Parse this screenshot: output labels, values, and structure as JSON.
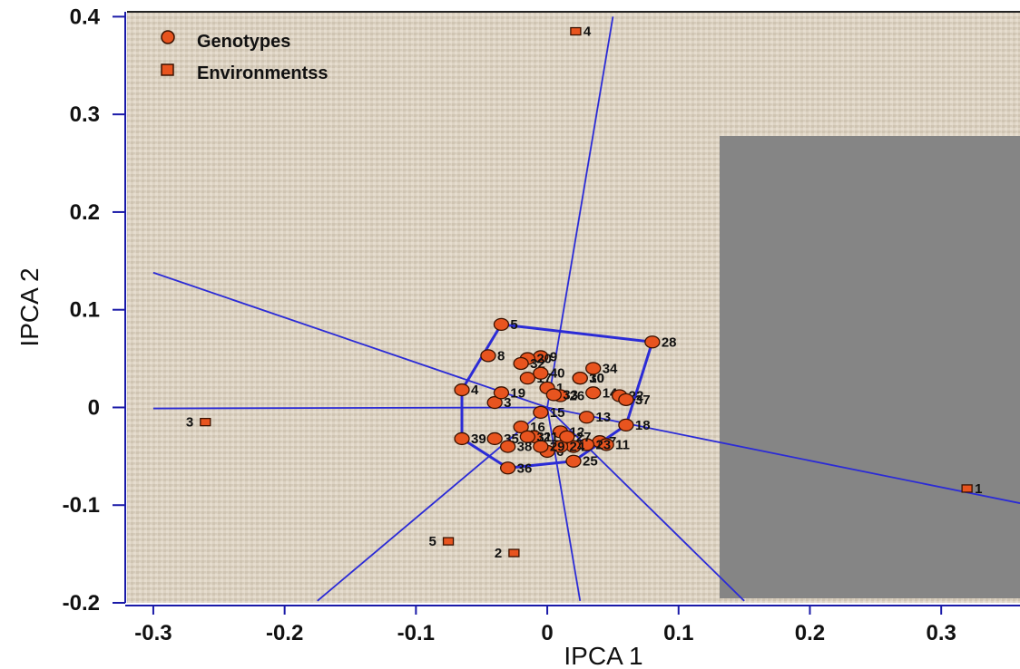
{
  "chart_data": {
    "type": "scatter",
    "title": "",
    "xlabel": "IPCA 1",
    "ylabel": "IPCA 2",
    "xlim": [
      -0.32,
      0.36
    ],
    "ylim": [
      -0.2,
      0.405
    ],
    "x_ticks": [
      -0.3,
      -0.2,
      -0.1,
      0,
      0.1,
      0.2,
      0.3
    ],
    "x_tick_labels": [
      "-0.3",
      "-0.2",
      "-0.1",
      "0",
      "0.1",
      "0.2",
      "0.3"
    ],
    "y_ticks": [
      -0.2,
      -0.1,
      0,
      0.1,
      0.2,
      0.3,
      0.4
    ],
    "y_tick_labels": [
      "-0.2",
      "-0.1",
      "0",
      "0.1",
      "0.2",
      "0.3",
      "0.4"
    ],
    "legend": {
      "position": "top-left",
      "entries": [
        {
          "label": "Genotypes",
          "marker": "circle"
        },
        {
          "label": "Environmentss",
          "marker": "square"
        }
      ]
    },
    "colors": {
      "marker_fill": "#e8541f",
      "marker_stroke": "#3a1200",
      "line": "#2b2bd6",
      "background": "#ddd3c3",
      "overlay": "#858585"
    },
    "series": [
      {
        "name": "Genotypes",
        "marker": "circle",
        "points": [
          {
            "label": "1",
            "x": 0.0,
            "y": 0.02
          },
          {
            "label": "2",
            "x": 0.02,
            "y": -0.04
          },
          {
            "label": "3",
            "x": -0.04,
            "y": 0.005
          },
          {
            "label": "4",
            "x": -0.065,
            "y": 0.018
          },
          {
            "label": "5",
            "x": -0.035,
            "y": 0.085
          },
          {
            "label": "6",
            "x": 0.0,
            "y": -0.045
          },
          {
            "label": "7",
            "x": 0.04,
            "y": -0.035
          },
          {
            "label": "8",
            "x": -0.045,
            "y": 0.053
          },
          {
            "label": "9",
            "x": -0.005,
            "y": 0.052
          },
          {
            "label": "10",
            "x": 0.025,
            "y": 0.03
          },
          {
            "label": "11",
            "x": 0.045,
            "y": -0.038
          },
          {
            "label": "12",
            "x": 0.01,
            "y": -0.025
          },
          {
            "label": "13",
            "x": 0.03,
            "y": -0.01
          },
          {
            "label": "14",
            "x": 0.035,
            "y": 0.015
          },
          {
            "label": "15",
            "x": -0.005,
            "y": -0.005
          },
          {
            "label": "16",
            "x": -0.02,
            "y": -0.02
          },
          {
            "label": "17",
            "x": -0.015,
            "y": 0.03
          },
          {
            "label": "18",
            "x": 0.06,
            "y": -0.018
          },
          {
            "label": "19",
            "x": -0.035,
            "y": 0.015
          },
          {
            "label": "20",
            "x": -0.015,
            "y": 0.05
          },
          {
            "label": "21",
            "x": -0.01,
            "y": -0.03
          },
          {
            "label": "22",
            "x": 0.055,
            "y": 0.012
          },
          {
            "label": "23",
            "x": 0.03,
            "y": -0.038
          },
          {
            "label": "24",
            "x": 0.01,
            "y": -0.04
          },
          {
            "label": "25",
            "x": 0.02,
            "y": -0.055
          },
          {
            "label": "26",
            "x": 0.01,
            "y": 0.012
          },
          {
            "label": "27",
            "x": 0.015,
            "y": -0.03
          },
          {
            "label": "28",
            "x": 0.08,
            "y": 0.067
          },
          {
            "label": "29",
            "x": -0.005,
            "y": -0.04
          },
          {
            "label": "30",
            "x": 0.025,
            "y": 0.03
          },
          {
            "label": "31",
            "x": -0.015,
            "y": -0.03
          },
          {
            "label": "32",
            "x": -0.02,
            "y": 0.045
          },
          {
            "label": "33",
            "x": 0.005,
            "y": 0.013
          },
          {
            "label": "34",
            "x": 0.035,
            "y": 0.04
          },
          {
            "label": "35",
            "x": -0.04,
            "y": -0.032
          },
          {
            "label": "36",
            "x": -0.03,
            "y": -0.062
          },
          {
            "label": "37",
            "x": 0.06,
            "y": 0.008
          },
          {
            "label": "38",
            "x": -0.03,
            "y": -0.04
          },
          {
            "label": "39",
            "x": -0.065,
            "y": -0.032
          },
          {
            "label": "40",
            "x": -0.005,
            "y": 0.035
          }
        ]
      },
      {
        "name": "Environmentss",
        "marker": "square",
        "points": [
          {
            "label": "1",
            "x": 0.32,
            "y": -0.083
          },
          {
            "label": "2",
            "x": -0.025,
            "y": -0.149
          },
          {
            "label": "3",
            "x": -0.26,
            "y": -0.015
          },
          {
            "label": "4",
            "x": 0.022,
            "y": 0.385
          },
          {
            "label": "5",
            "x": -0.075,
            "y": -0.137
          }
        ]
      }
    ],
    "polygon_vertices": [
      {
        "x": -0.035,
        "y": 0.085
      },
      {
        "x": 0.08,
        "y": 0.067
      },
      {
        "x": 0.06,
        "y": -0.018
      },
      {
        "x": 0.02,
        "y": -0.055
      },
      {
        "x": -0.03,
        "y": -0.062
      },
      {
        "x": -0.065,
        "y": -0.032
      },
      {
        "x": -0.065,
        "y": 0.018
      }
    ],
    "sector_rays": [
      {
        "x1": 0.0,
        "y1": 0.0,
        "x2": 0.05,
        "y2": 0.4
      },
      {
        "x1": 0.0,
        "y1": 0.0,
        "x2": 0.36,
        "y2": -0.098
      },
      {
        "x1": 0.0,
        "y1": 0.0,
        "x2": -0.3,
        "y2": 0.138
      },
      {
        "x1": 0.0,
        "y1": 0.0,
        "x2": -0.3,
        "y2": -0.001
      },
      {
        "x1": 0.0,
        "y1": 0.0,
        "x2": -0.175,
        "y2": -0.198
      },
      {
        "x1": 0.0,
        "y1": 0.0,
        "x2": 0.025,
        "y2": -0.198
      },
      {
        "x1": 0.0,
        "y1": 0.0,
        "x2": 0.15,
        "y2": -0.198
      }
    ]
  }
}
